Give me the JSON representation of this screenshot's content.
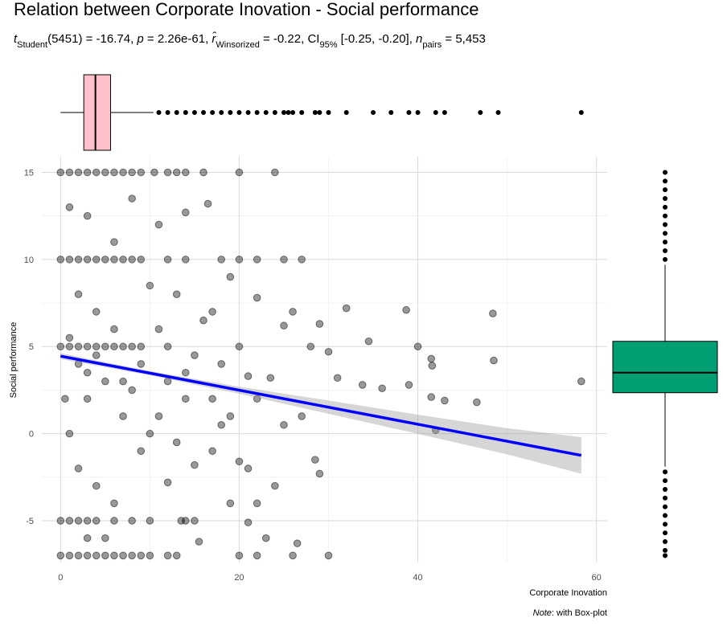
{
  "chart_data": {
    "type": "scatter",
    "title": "Relation between Corporate Inovation - Social performance",
    "subtitle": [
      {
        "text": "t",
        "style": "italic"
      },
      {
        "text": "Student",
        "style": "sub"
      },
      {
        "text": "(5451) = -16.74, ",
        "style": "normal"
      },
      {
        "text": "p",
        "style": "italic"
      },
      {
        "text": " = 2.26e-61, ",
        "style": "normal"
      },
      {
        "text": "r̂",
        "style": "italic"
      },
      {
        "text": "Winsorized",
        "style": "sub"
      },
      {
        "text": " = -0.22, CI",
        "style": "normal"
      },
      {
        "text": "95%",
        "style": "sub"
      },
      {
        "text": " [-0.25, -0.20], ",
        "style": "normal"
      },
      {
        "text": "n",
        "style": "italic"
      },
      {
        "text": "pairs",
        "style": "sub"
      },
      {
        "text": " = 5,453",
        "style": "normal"
      }
    ],
    "xlabel": "Corporate Inovation",
    "ylabel": "Social performance",
    "caption": [
      {
        "text": "Note",
        "style": "italic"
      },
      {
        "text": ": with Box-plot",
        "style": "normal"
      }
    ],
    "xlim": [
      -2.1,
      61.2
    ],
    "ylim": [
      -7.4,
      15.9
    ],
    "xticks": [
      0,
      20,
      40,
      60
    ],
    "yticks": [
      -5,
      0,
      5,
      10,
      15
    ],
    "grid": true,
    "series": [
      {
        "color": "#000000",
        "x": [
          0,
          1,
          2,
          3,
          4,
          5,
          6,
          7,
          8,
          9,
          10.5,
          12,
          13,
          14,
          16,
          20,
          24,
          0,
          1,
          2,
          3,
          4,
          5,
          6,
          7,
          8,
          9,
          12,
          14,
          18,
          20,
          22,
          25,
          27,
          0,
          1,
          2,
          3,
          4,
          6,
          8,
          10,
          14,
          15,
          0,
          1,
          2,
          3,
          4,
          5,
          6,
          7,
          8,
          9,
          10,
          12,
          13,
          20,
          22,
          26,
          30,
          0,
          1,
          2,
          3,
          4,
          5,
          6,
          7,
          8,
          9,
          33.8,
          32,
          34.5,
          36,
          38.7,
          39,
          40,
          41.5,
          41.6,
          41.5,
          42,
          43,
          46.6,
          48.4,
          48.5,
          58.3,
          29,
          28,
          25,
          26,
          22,
          21,
          23.5,
          21,
          22,
          23,
          28.5,
          29,
          27,
          25,
          19,
          17,
          15,
          18,
          16,
          12,
          13,
          11,
          14,
          19,
          21,
          13.5,
          16.5,
          14,
          11,
          8,
          6,
          3,
          1,
          2,
          4,
          5,
          3,
          1,
          2,
          4,
          6,
          7,
          8,
          9,
          10,
          5,
          3,
          12,
          15.5,
          24,
          26.5,
          20,
          19,
          10,
          17,
          30,
          31,
          2,
          3,
          4,
          1,
          0.5,
          6,
          7,
          9,
          11,
          12,
          13,
          14,
          15,
          17,
          18,
          20,
          22
        ],
        "y": [
          15,
          15,
          15,
          15,
          15,
          15,
          15,
          15,
          15,
          15,
          15,
          15,
          15,
          15,
          15,
          15,
          15,
          10,
          10,
          10,
          10,
          10,
          10,
          10,
          10,
          10,
          10,
          10,
          10,
          10,
          10,
          10,
          10,
          10,
          -5,
          -5,
          -5,
          -5,
          -5,
          -5,
          -5,
          -5,
          -5,
          -5,
          -7,
          -7,
          -7,
          -7,
          -7,
          -7,
          -7,
          -7,
          -7,
          -7,
          -7,
          -7,
          -7,
          -7,
          -7,
          -7,
          -7,
          5,
          5,
          5,
          5,
          5,
          5,
          5,
          5,
          5,
          5,
          2.8,
          7.2,
          5.3,
          2.6,
          7.1,
          2.8,
          5,
          4.3,
          3.9,
          2.1,
          0.2,
          1.9,
          1.8,
          6.9,
          4.2,
          3,
          6.3,
          5,
          6.2,
          7,
          7.8,
          3.3,
          3.2,
          -2,
          -4,
          -6,
          -1.5,
          -2.3,
          1,
          0.5,
          1,
          -1,
          -1.8,
          4,
          6.5,
          3,
          8,
          6,
          2,
          -4,
          -5.1,
          -5,
          13.2,
          12.7,
          12,
          13.5,
          11,
          12.5,
          13,
          8,
          7,
          3,
          2,
          0,
          -2,
          -3,
          -4,
          1,
          2.5,
          -1,
          0,
          -6,
          -6,
          -2.8,
          -6.2,
          -3,
          -6.3,
          -1.6,
          9,
          8.5,
          7,
          4.7,
          3.2,
          4,
          3.5,
          4.5,
          5.5,
          2,
          6,
          3,
          4,
          1,
          5,
          -0.5,
          3.5,
          4.5,
          2,
          0.5,
          5,
          2
        ]
      }
    ],
    "fit": {
      "color": "#0000ff",
      "x": [
        0,
        58.3
      ],
      "y": [
        4.45,
        -1.25
      ]
    },
    "ci": {
      "x": [
        0,
        10,
        20,
        30,
        40,
        50,
        58.3
      ],
      "lower": [
        4.28,
        3.35,
        2.29,
        1.14,
        -0.01,
        -1.19,
        -2.3
      ],
      "upper": [
        4.62,
        3.59,
        2.69,
        1.9,
        1.09,
        0.31,
        -0.2
      ]
    },
    "x_boxplot": {
      "color": "#ffc0cb",
      "whisker_low": 0,
      "q1": 2.6,
      "median": 3.9,
      "q3": 5.6,
      "whisker_high": 10.4,
      "outliers": [
        11,
        12,
        13,
        14,
        15,
        16,
        17,
        18,
        19,
        20,
        21,
        22,
        23,
        24,
        25,
        25.5,
        26,
        27,
        28.5,
        29,
        30,
        32,
        35,
        37,
        39,
        40,
        42,
        43,
        47,
        49,
        58.3
      ]
    },
    "y_boxplot": {
      "color": "#009e73",
      "whisker_low": -1.9,
      "q1": 2.35,
      "median": 3.5,
      "q3": 5.3,
      "whisker_high": 9.7,
      "outliers": [
        10,
        10.5,
        11,
        11.5,
        12,
        12.5,
        13,
        13.5,
        14,
        14.5,
        15,
        -2.2,
        -2.7,
        -3.2,
        -3.7,
        -4.2,
        -4.7,
        -5.2,
        -5.7,
        -6.2,
        -6.7,
        -7
      ]
    }
  }
}
